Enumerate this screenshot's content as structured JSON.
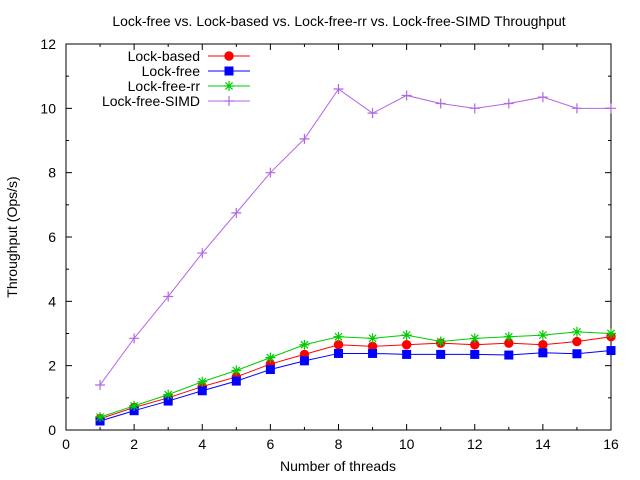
{
  "chart_data": {
    "type": "line",
    "title": "Lock-free vs. Lock-based vs. Lock-free-rr vs. Lock-free-SIMD Throughput",
    "xlabel": "Number of threads",
    "ylabel": "Throughput (Ops/s)",
    "xlim": [
      0,
      16
    ],
    "ylim": [
      0,
      12
    ],
    "xticks": [
      "0",
      "2",
      "4",
      "6",
      "8",
      "10",
      "12",
      "14",
      "16"
    ],
    "yticks": [
      "0",
      "2",
      "4",
      "6",
      "8",
      "10",
      "12"
    ],
    "legend_position": "top-left",
    "grid": false,
    "x": [
      1,
      2,
      3,
      4,
      5,
      6,
      7,
      8,
      9,
      10,
      11,
      12,
      13,
      14,
      15,
      16
    ],
    "series": [
      {
        "name": "Lock-based",
        "color": "#ff0000",
        "marker": "circle",
        "values": [
          0.35,
          0.7,
          1.0,
          1.35,
          1.65,
          2.05,
          2.35,
          2.65,
          2.6,
          2.65,
          2.7,
          2.65,
          2.7,
          2.65,
          2.75,
          2.9
        ]
      },
      {
        "name": "Lock-free",
        "color": "#0000ff",
        "marker": "square",
        "values": [
          0.28,
          0.6,
          0.9,
          1.22,
          1.52,
          1.88,
          2.15,
          2.38,
          2.38,
          2.35,
          2.35,
          2.35,
          2.33,
          2.4,
          2.37,
          2.47
        ]
      },
      {
        "name": "Lock-free-rr",
        "color": "#00cc00",
        "marker": "star",
        "values": [
          0.4,
          0.75,
          1.1,
          1.5,
          1.85,
          2.25,
          2.65,
          2.9,
          2.85,
          2.95,
          2.75,
          2.85,
          2.9,
          2.95,
          3.05,
          3.0
        ]
      },
      {
        "name": "Lock-free-SIMD",
        "color": "#b266e6",
        "marker": "plus",
        "values": [
          1.4,
          2.85,
          4.15,
          5.5,
          6.75,
          8.0,
          9.05,
          10.6,
          9.85,
          10.4,
          10.15,
          10.0,
          10.15,
          10.35,
          10.0,
          10.0
        ]
      }
    ]
  }
}
